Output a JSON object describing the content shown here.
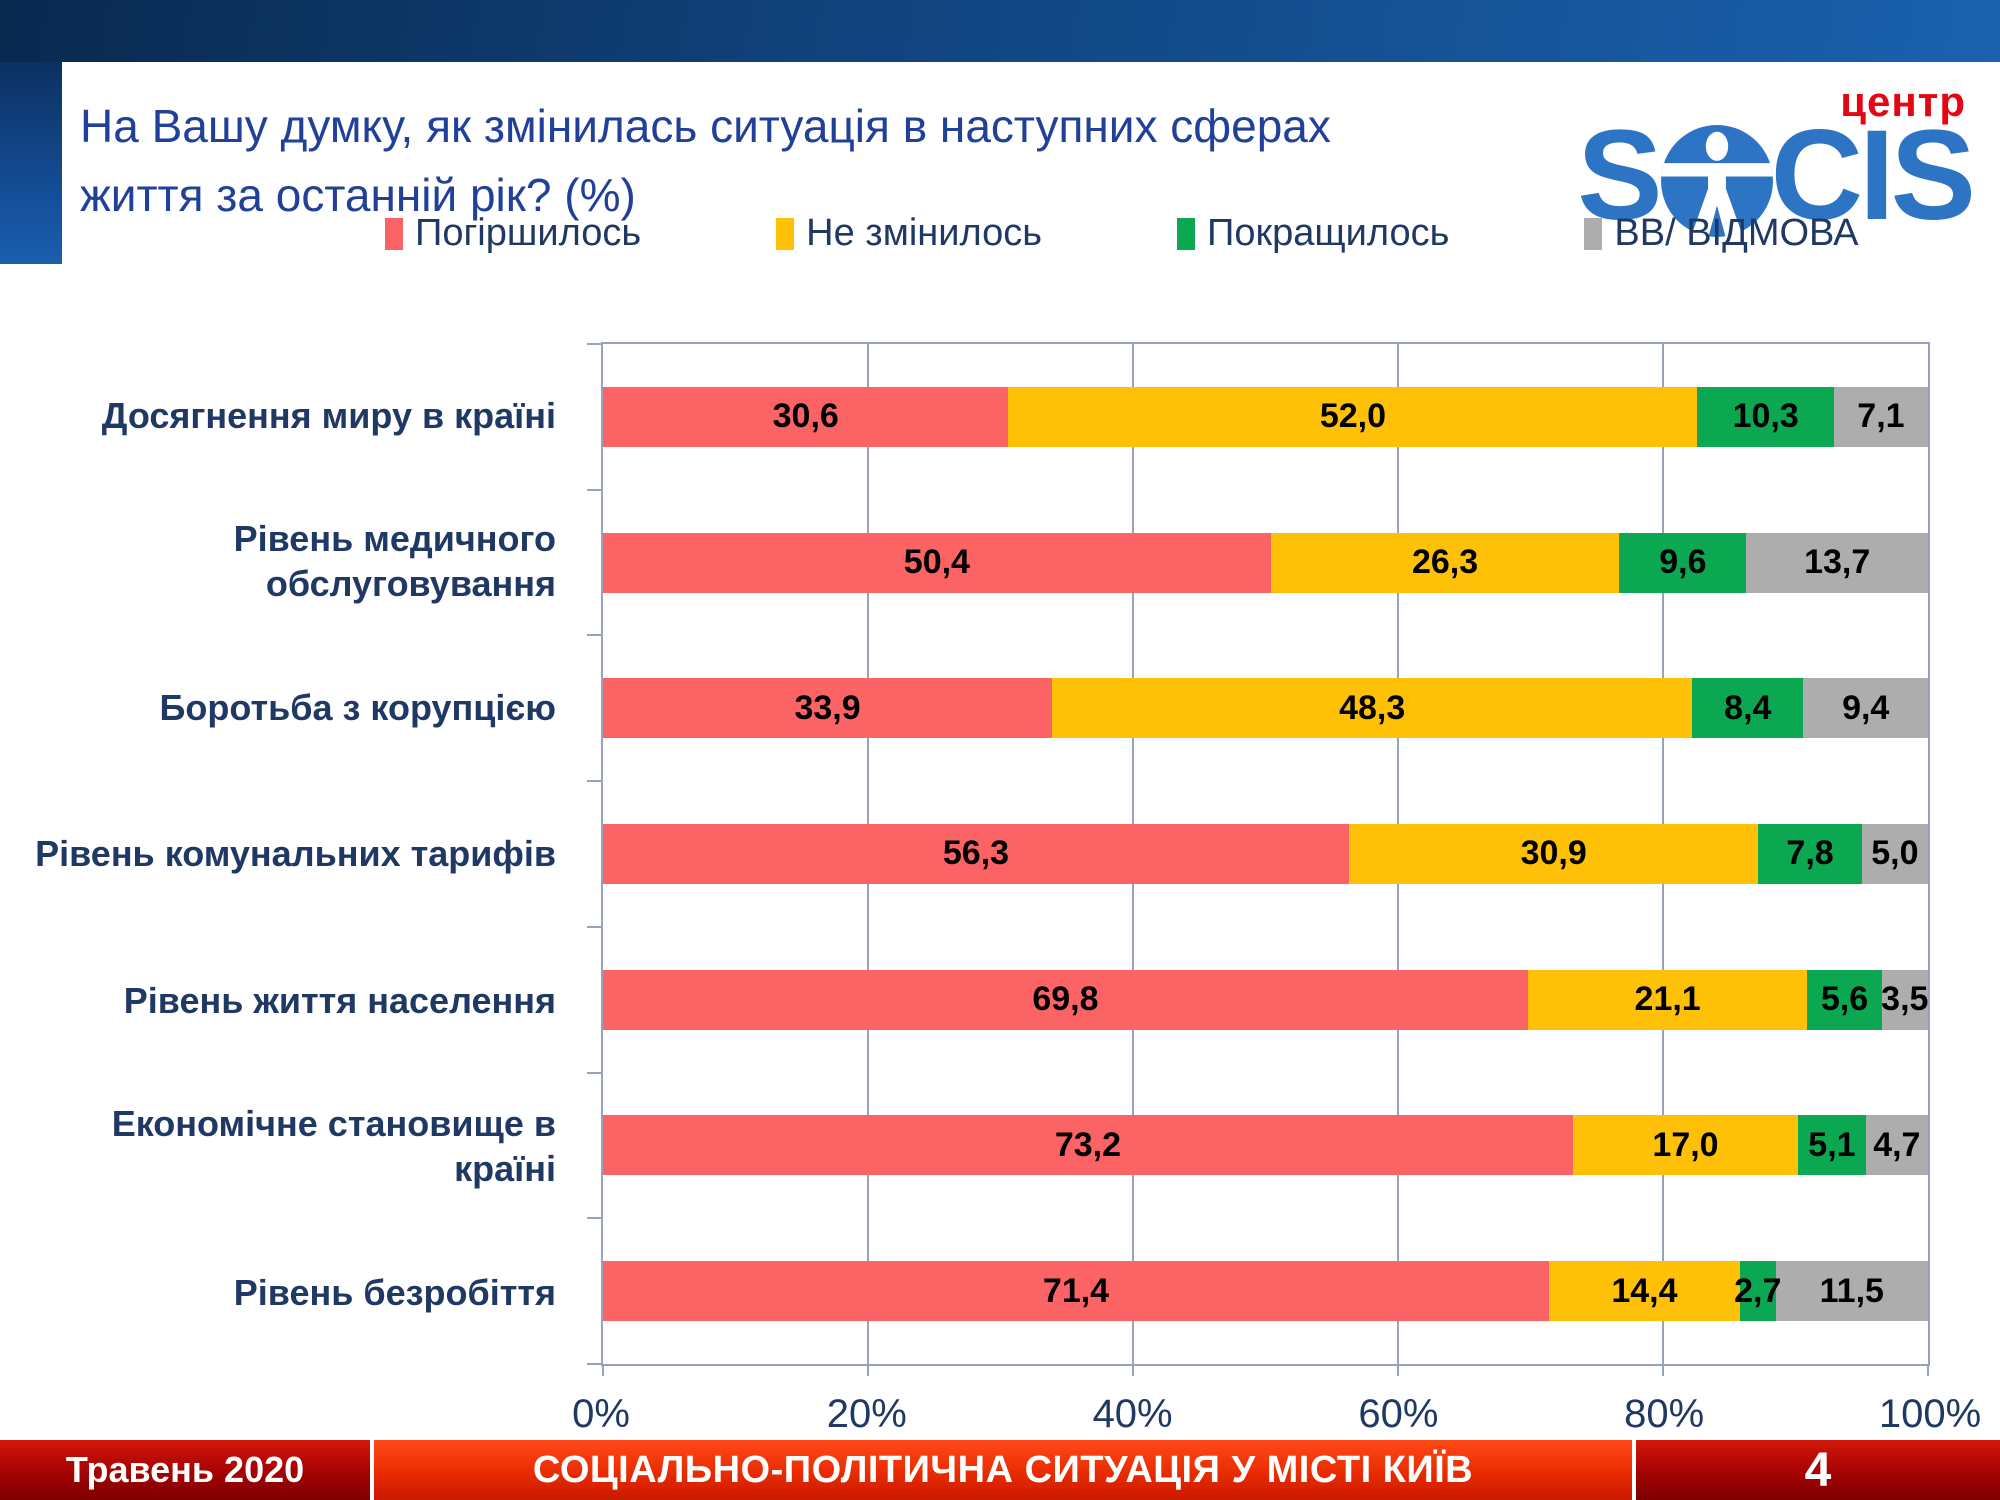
{
  "slide": {
    "title": "На Вашу думку, як змінилась ситуація в наступних сферах життя за останній рік? (%)",
    "logo": {
      "brand_left": "S",
      "brand_right": "CIS",
      "tagline": "центр"
    },
    "footer": {
      "date": "Травень 2020",
      "caption": "СОЦІАЛЬНО-ПОЛІТИЧНА СИТУАЦІЯ У МІСТІ КИЇВ",
      "page": "4"
    }
  },
  "colors": {
    "worse": "#fb6364",
    "same": "#ffc008",
    "better": "#0ca751",
    "refuse": "#adadad",
    "grid": "#98a2bc",
    "navy": "#1f3864",
    "title_blue": "#21409a",
    "logo_blue": "#2e74c4",
    "logo_red": "#e30613"
  },
  "chart_data": {
    "type": "bar",
    "orientation": "horizontal-stacked",
    "title": "На Вашу думку, як змінилась ситуація в наступних сферах життя за останній рік? (%)",
    "xlabel": "",
    "ylabel": "",
    "xlim": [
      0,
      100
    ],
    "x_ticks": [
      "0%",
      "20%",
      "40%",
      "60%",
      "80%",
      "100%"
    ],
    "grid": true,
    "legend_position": "top",
    "legend": [
      "Погіршилось",
      "Не змінилось",
      "Покращилось",
      "ВВ/ ВІДМОВА"
    ],
    "categories": [
      "Досягнення миру в країні",
      "Рівень медичного обслуговування",
      "Боротьба з корупцією",
      "Рівень комунальних тарифів",
      "Рівень життя населення",
      "Економічне становище в країні",
      "Рівень безробіття"
    ],
    "series": [
      {
        "name": "Погіршилось",
        "color_key": "worse",
        "values": [
          30.6,
          50.4,
          33.9,
          56.3,
          69.8,
          73.2,
          71.4
        ]
      },
      {
        "name": "Не змінилось",
        "color_key": "same",
        "values": [
          52.0,
          26.3,
          48.3,
          30.9,
          21.1,
          17.0,
          14.4
        ]
      },
      {
        "name": "Покращилось",
        "color_key": "better",
        "values": [
          10.3,
          9.6,
          8.4,
          7.8,
          5.6,
          5.1,
          2.7
        ]
      },
      {
        "name": "ВВ/ ВІДМОВА",
        "color_key": "refuse",
        "values": [
          7.1,
          13.7,
          9.4,
          5.0,
          3.5,
          4.7,
          11.5
        ]
      }
    ]
  }
}
